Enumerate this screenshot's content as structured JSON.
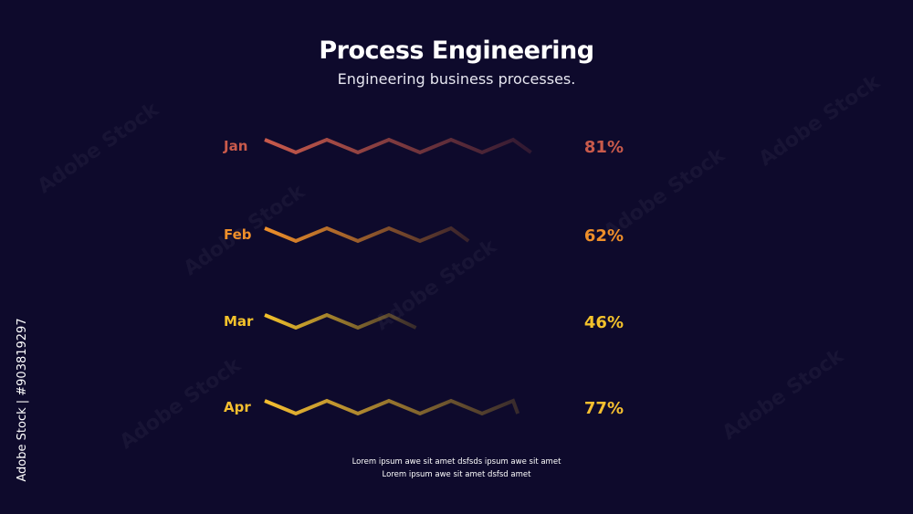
{
  "header": {
    "title": "Process Engineering",
    "subtitle": "Engineering business processes."
  },
  "chart_data": {
    "type": "line",
    "categories": [
      "Jan",
      "Feb",
      "Mar",
      "Apr"
    ],
    "values": [
      81,
      62,
      46,
      77
    ],
    "labels": [
      "81%",
      "62%",
      "46%",
      "77%"
    ],
    "colors": [
      "#c95a4b",
      "#ee8f2a",
      "#f3c22b",
      "#f5bf30"
    ]
  },
  "footer": {
    "line1": "Lorem ipsum awe sit amet dsfsds ipsum awe sit amet",
    "line2": "Lorem ipsum awe sit amet dsfsd amet"
  },
  "side_text": "Adobe Stock | #903819297"
}
